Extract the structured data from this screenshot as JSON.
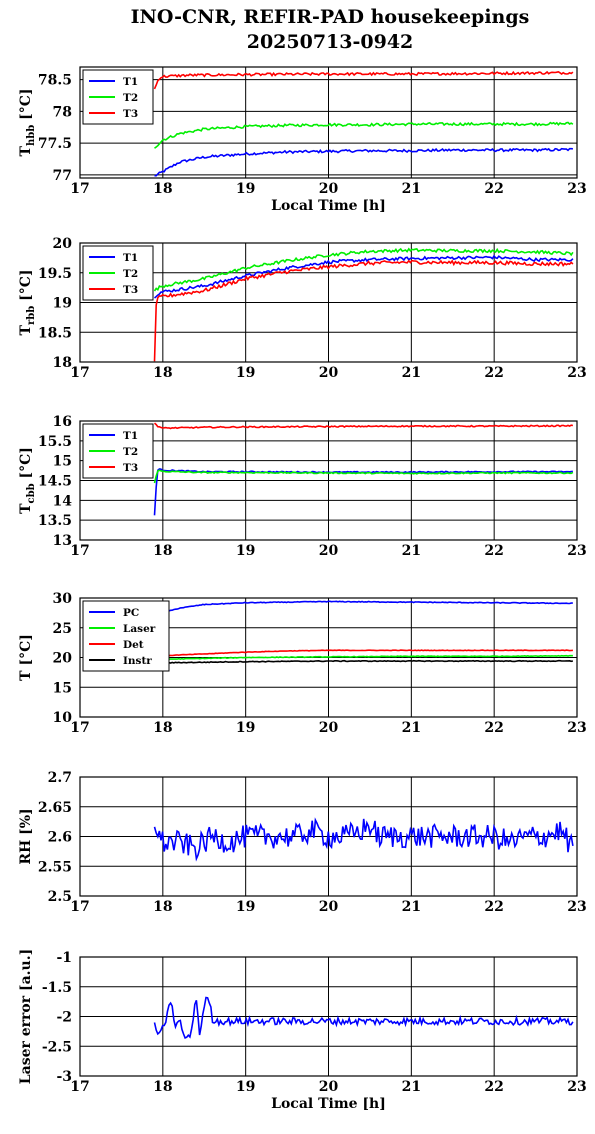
{
  "figure": {
    "title_line1": "INO-CNR, REFIR-PAD housekeepings",
    "title_line2": "20250713-0942"
  },
  "colors": {
    "blue": "#0000ff",
    "green": "#00ee00",
    "red": "#ff0000",
    "black": "#000000"
  },
  "chart_data": [
    {
      "id": "tbb_h",
      "type": "line",
      "ylabel": "T",
      "ylabel_sub": "hbb",
      "ylabel_unit": "[°C]",
      "xlabel": "Local Time [h]",
      "xlim": [
        17,
        23
      ],
      "ylim": [
        76.95,
        78.7
      ],
      "xticks": [
        "17",
        "18",
        "19",
        "20",
        "21",
        "22",
        "23"
      ],
      "yticks": [
        {
          "v": 77,
          "label": "77"
        },
        {
          "v": 77.5,
          "label": "77.5"
        },
        {
          "v": 78,
          "label": "78"
        },
        {
          "v": 78.5,
          "label": "78.5"
        }
      ],
      "grid": true,
      "legend": "top-left",
      "series": [
        {
          "name": "T1",
          "color": "#0000ff",
          "x": [
            17.9,
            18.0,
            18.2,
            18.5,
            19.0,
            19.5,
            20.0,
            20.5,
            21.0,
            21.5,
            22.0,
            22.5,
            22.95
          ],
          "y": [
            76.98,
            77.05,
            77.2,
            77.28,
            77.33,
            77.36,
            77.37,
            77.38,
            77.38,
            77.39,
            77.39,
            77.39,
            77.4
          ],
          "noise": 0.02
        },
        {
          "name": "T2",
          "color": "#00ee00",
          "x": [
            17.9,
            18.0,
            18.2,
            18.5,
            19.0,
            19.5,
            20.0,
            20.5,
            21.0,
            21.5,
            22.0,
            22.5,
            22.95
          ],
          "y": [
            77.43,
            77.55,
            77.65,
            77.72,
            77.76,
            77.78,
            77.79,
            77.79,
            77.8,
            77.8,
            77.8,
            77.8,
            77.81
          ],
          "noise": 0.02
        },
        {
          "name": "T3",
          "color": "#ff0000",
          "x": [
            17.9,
            17.95,
            18.0,
            18.3,
            19.0,
            20.0,
            21.0,
            22.0,
            22.95
          ],
          "y": [
            78.35,
            78.52,
            78.55,
            78.57,
            78.58,
            78.59,
            78.59,
            78.6,
            78.61
          ],
          "noise": 0.02
        }
      ]
    },
    {
      "id": "tbb_r",
      "type": "line",
      "ylabel": "T",
      "ylabel_sub": "rbb",
      "ylabel_unit": "[°C]",
      "xlabel": "",
      "xlim": [
        17,
        23
      ],
      "ylim": [
        18,
        20
      ],
      "xticks": [
        "17",
        "18",
        "19",
        "20",
        "21",
        "22",
        "23"
      ],
      "yticks": [
        {
          "v": 18,
          "label": "18"
        },
        {
          "v": 18.5,
          "label": "18.5"
        },
        {
          "v": 19,
          "label": "19"
        },
        {
          "v": 19.5,
          "label": "19.5"
        },
        {
          "v": 20,
          "label": "20"
        }
      ],
      "grid": true,
      "legend": "top-left",
      "series": [
        {
          "name": "T1",
          "color": "#0000ff",
          "x": [
            17.9,
            17.95,
            18.0,
            18.5,
            19.0,
            19.5,
            20.0,
            20.5,
            21.0,
            21.5,
            22.0,
            22.5,
            22.95
          ],
          "y": [
            19.1,
            19.16,
            19.18,
            19.28,
            19.45,
            19.58,
            19.68,
            19.72,
            19.74,
            19.75,
            19.76,
            19.72,
            19.72
          ],
          "noise": 0.025
        },
        {
          "name": "T2",
          "color": "#00ee00",
          "x": [
            17.9,
            17.95,
            18.0,
            18.5,
            19.0,
            19.5,
            20.0,
            20.5,
            21.0,
            21.5,
            22.0,
            22.5,
            22.95
          ],
          "y": [
            19.2,
            19.25,
            19.28,
            19.4,
            19.58,
            19.7,
            19.8,
            19.86,
            19.88,
            19.87,
            19.87,
            19.85,
            19.82
          ],
          "noise": 0.025
        },
        {
          "name": "T3",
          "color": "#ff0000",
          "x": [
            17.9,
            17.92,
            17.95,
            18.0,
            18.5,
            19.0,
            19.5,
            20.0,
            20.5,
            21.0,
            21.5,
            22.0,
            22.5,
            22.95
          ],
          "y": [
            18.02,
            19.0,
            19.08,
            19.1,
            19.2,
            19.4,
            19.52,
            19.6,
            19.66,
            19.68,
            19.67,
            19.67,
            19.65,
            19.65
          ],
          "noise": 0.03
        }
      ]
    },
    {
      "id": "tbb_c",
      "type": "line",
      "ylabel": "T",
      "ylabel_sub": "cbb",
      "ylabel_unit": "[°C]",
      "xlabel": "",
      "xlim": [
        17,
        23
      ],
      "ylim": [
        13,
        16
      ],
      "xticks": [
        "17",
        "18",
        "19",
        "20",
        "21",
        "22",
        "23"
      ],
      "yticks": [
        {
          "v": 13,
          "label": "13"
        },
        {
          "v": 13.5,
          "label": "13.5"
        },
        {
          "v": 14,
          "label": "14"
        },
        {
          "v": 14.5,
          "label": "14.5"
        },
        {
          "v": 15,
          "label": "15"
        },
        {
          "v": 15.5,
          "label": "15.5"
        },
        {
          "v": 16,
          "label": "16"
        }
      ],
      "grid": true,
      "legend": "top-left",
      "series": [
        {
          "name": "T1",
          "color": "#0000ff",
          "x": [
            17.9,
            17.93,
            17.96,
            18.0,
            18.5,
            19.0,
            20.0,
            21.0,
            22.0,
            22.95
          ],
          "y": [
            13.62,
            14.75,
            14.78,
            14.76,
            14.72,
            14.72,
            14.71,
            14.71,
            14.72,
            14.72
          ],
          "noise": 0.015
        },
        {
          "name": "T2",
          "color": "#00ee00",
          "x": [
            17.9,
            17.93,
            17.96,
            18.0,
            18.5,
            19.0,
            20.0,
            21.0,
            22.0,
            22.95
          ],
          "y": [
            14.45,
            14.72,
            14.75,
            14.73,
            14.7,
            14.7,
            14.69,
            14.68,
            14.69,
            14.69
          ],
          "noise": 0.015
        },
        {
          "name": "T3",
          "color": "#ff0000",
          "x": [
            17.9,
            17.93,
            18.0,
            18.5,
            19.0,
            20.0,
            21.0,
            22.0,
            22.95
          ],
          "y": [
            15.95,
            15.88,
            15.82,
            15.84,
            15.85,
            15.86,
            15.87,
            15.87,
            15.88
          ],
          "noise": 0.015
        }
      ]
    },
    {
      "id": "temps",
      "type": "line",
      "ylabel": "T [°C]",
      "ylabel_sub": "",
      "ylabel_unit": "",
      "xlabel": "",
      "xlim": [
        17,
        23
      ],
      "ylim": [
        10,
        30
      ],
      "xticks": [
        "17",
        "18",
        "19",
        "20",
        "21",
        "22",
        "23"
      ],
      "yticks": [
        {
          "v": 10,
          "label": "10"
        },
        {
          "v": 15,
          "label": "15"
        },
        {
          "v": 20,
          "label": "20"
        },
        {
          "v": 25,
          "label": "25"
        },
        {
          "v": 30,
          "label": "30"
        }
      ],
      "grid": true,
      "legend": "top-left",
      "series": [
        {
          "name": "PC",
          "color": "#0000ff",
          "x": [
            17.9,
            18.0,
            18.2,
            18.5,
            19.0,
            19.5,
            20.0,
            21.0,
            22.0,
            22.95
          ],
          "y": [
            26.5,
            27.5,
            28.3,
            28.9,
            29.2,
            29.3,
            29.4,
            29.3,
            29.2,
            29.1
          ],
          "noise": 0.06
        },
        {
          "name": "Laser",
          "color": "#00ee00",
          "x": [
            17.9,
            18.0,
            19.0,
            20.0,
            21.0,
            22.0,
            22.95
          ],
          "y": [
            19.6,
            19.7,
            20.0,
            20.1,
            20.2,
            20.2,
            20.3
          ],
          "noise": 0.05
        },
        {
          "name": "Det",
          "color": "#ff0000",
          "x": [
            17.9,
            18.0,
            18.5,
            19.0,
            19.5,
            20.0,
            21.0,
            22.0,
            22.95
          ],
          "y": [
            20.2,
            20.3,
            20.6,
            20.9,
            21.1,
            21.2,
            21.2,
            21.2,
            21.2
          ],
          "noise": 0.04
        },
        {
          "name": "Instr",
          "color": "#000000",
          "x": [
            17.9,
            18.0,
            19.0,
            20.0,
            21.0,
            22.0,
            22.95
          ],
          "y": [
            19.0,
            19.1,
            19.3,
            19.4,
            19.4,
            19.4,
            19.4
          ],
          "noise": 0.06
        }
      ]
    },
    {
      "id": "rh",
      "type": "line",
      "ylabel": "RH [%]",
      "ylabel_sub": "",
      "ylabel_unit": "",
      "xlabel": "",
      "xlim": [
        17,
        23
      ],
      "ylim": [
        2.5,
        2.7
      ],
      "xticks": [
        "17",
        "18",
        "19",
        "20",
        "21",
        "22",
        "23"
      ],
      "yticks": [
        {
          "v": 2.5,
          "label": "2.5"
        },
        {
          "v": 2.55,
          "label": "2.55"
        },
        {
          "v": 2.6,
          "label": "2.6"
        },
        {
          "v": 2.65,
          "label": "2.65"
        },
        {
          "v": 2.7,
          "label": "2.7"
        }
      ],
      "grid": true,
      "legend": "none",
      "series": [
        {
          "name": "",
          "color": "#0000ff",
          "x": [
            17.9,
            17.95,
            18.0,
            18.2,
            18.4,
            18.6,
            18.8,
            19.0,
            19.2,
            19.4,
            19.6,
            19.8,
            20.0,
            20.2,
            20.4,
            20.5,
            20.6,
            20.8,
            21.0,
            21.2,
            21.4,
            21.6,
            21.8,
            22.0,
            22.2,
            22.4,
            22.6,
            22.8,
            22.95
          ],
          "y": [
            2.63,
            2.6,
            2.59,
            2.59,
            2.58,
            2.6,
            2.59,
            2.6,
            2.6,
            2.6,
            2.6,
            2.61,
            2.6,
            2.6,
            2.61,
            2.62,
            2.6,
            2.6,
            2.6,
            2.6,
            2.6,
            2.6,
            2.6,
            2.6,
            2.59,
            2.6,
            2.6,
            2.61,
            2.58
          ],
          "noise": 0.02
        }
      ]
    },
    {
      "id": "laser",
      "type": "line",
      "ylabel": "Laser error [a.u.]",
      "ylabel_sub": "",
      "ylabel_unit": "",
      "xlabel": "Local Time [h]",
      "xlim": [
        17,
        23
      ],
      "ylim": [
        -3,
        -1
      ],
      "xticks": [
        "17",
        "18",
        "19",
        "20",
        "21",
        "22",
        "23"
      ],
      "yticks": [
        {
          "v": -3,
          "label": "-3"
        },
        {
          "v": -2.5,
          "label": "-2.5"
        },
        {
          "v": -2,
          "label": "-2"
        },
        {
          "v": -1.5,
          "label": "-1.5"
        },
        {
          "v": -1,
          "label": "-1"
        }
      ],
      "grid": true,
      "legend": "none",
      "series": [
        {
          "name": "",
          "color": "#0000ff",
          "x": [
            17.9,
            17.95,
            18.0,
            18.05,
            18.1,
            18.15,
            18.2,
            18.25,
            18.3,
            18.35,
            18.4,
            18.45,
            18.5,
            18.55,
            18.6,
            18.65,
            19.0,
            20.0,
            21.0,
            22.0,
            22.95
          ],
          "y": [
            -2.1,
            -2.35,
            -2.2,
            -2.0,
            -1.7,
            -2.2,
            -2.05,
            -2.3,
            -2.4,
            -2.2,
            -1.65,
            -2.35,
            -1.8,
            -1.65,
            -2.05,
            -2.08,
            -2.08,
            -2.08,
            -2.08,
            -2.08,
            -2.08
          ],
          "noise": 0.06
        }
      ]
    }
  ]
}
